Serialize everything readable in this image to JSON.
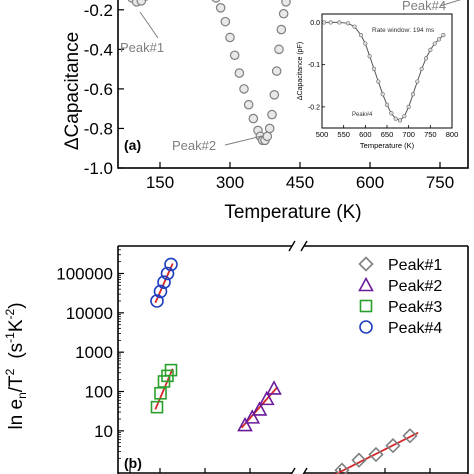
{
  "chart_data": [
    {
      "type": "scatter",
      "panel_label": "(a)",
      "xlabel": "Temperature (K)",
      "ylabel": "ΔCapacitance",
      "xlim": [
        60,
        810
      ],
      "ylim": [
        -1.0,
        -0.1
      ],
      "x_ticks": [
        150,
        300,
        450,
        600,
        750
      ],
      "x_tick_labels": [
        "150",
        "300",
        "450",
        "600",
        "750"
      ],
      "y_ticks": [
        -0.2,
        -0.4,
        -0.6,
        -0.8,
        -1.0
      ],
      "y_tick_labels": [
        "-0.2",
        "-0.4",
        "-0.6",
        "-0.8",
        "-1.0"
      ],
      "marker_color": "#7f7f7f",
      "series": [
        {
          "x": [
            80,
            90,
            100,
            110,
            120,
            150,
            180,
            210,
            240,
            255,
            270,
            280,
            290,
            300,
            310,
            320,
            330,
            340,
            350,
            360,
            365,
            370,
            375,
            380,
            385,
            390,
            395,
            400,
            405,
            410,
            415,
            420,
            430,
            440
          ],
          "y": [
            -0.12,
            -0.14,
            -0.16,
            -0.155,
            -0.13,
            -0.11,
            -0.1,
            -0.1,
            -0.1,
            -0.11,
            -0.14,
            -0.19,
            -0.26,
            -0.34,
            -0.43,
            -0.52,
            -0.6,
            -0.68,
            -0.75,
            -0.81,
            -0.84,
            -0.86,
            -0.86,
            -0.84,
            -0.8,
            -0.73,
            -0.63,
            -0.51,
            -0.4,
            -0.3,
            -0.22,
            -0.16,
            -0.12,
            -0.1
          ]
        }
      ],
      "annotations": [
        "Peak#1",
        "Peak#2",
        "Peak#4"
      ],
      "inset": {
        "type": "line",
        "xlabel": "Temperature (K)",
        "ylabel": "ΔCapacitance (pF)",
        "text": "Rate window: 194 ms",
        "annotation": "Peak#4",
        "xlim": [
          500,
          800
        ],
        "ylim": [
          -0.25,
          0.02
        ],
        "x_ticks": [
          500,
          550,
          600,
          650,
          700,
          750,
          800
        ],
        "x_tick_labels": [
          "500",
          "550",
          "600",
          "650",
          "700",
          "750",
          "800"
        ],
        "y_ticks": [
          0.0,
          -0.1,
          -0.2
        ],
        "y_tick_labels": [
          "0.0",
          "-0.1",
          "-0.2"
        ],
        "x": [
          505,
          520,
          540,
          560,
          575,
          590,
          600,
          610,
          620,
          630,
          640,
          650,
          660,
          670,
          680,
          690,
          700,
          710,
          720,
          730,
          740,
          750,
          760,
          770,
          780
        ],
        "y": [
          0.0,
          0.0,
          0.0,
          -0.002,
          -0.01,
          -0.03,
          -0.05,
          -0.08,
          -0.11,
          -0.14,
          -0.17,
          -0.195,
          -0.215,
          -0.228,
          -0.232,
          -0.222,
          -0.2,
          -0.17,
          -0.14,
          -0.11,
          -0.085,
          -0.065,
          -0.05,
          -0.04,
          -0.03
        ]
      }
    },
    {
      "type": "scatter",
      "panel_label": "(b)",
      "ylabel": "ln e_n/T^2  (s^-1 K^-2)",
      "ylabel_parts": [
        "ln e",
        "n",
        "/T",
        "2",
        "(s",
        "-1",
        "K",
        "-2",
        ")"
      ],
      "y_scale": "log",
      "ylim": [
        0.8,
        500000
      ],
      "y_ticks": [
        10,
        100,
        1000,
        10000,
        100000
      ],
      "y_tick_labels": [
        "10",
        "100",
        "1000",
        "10000",
        "100000"
      ],
      "x_axis_break": true,
      "legend_position": "top-right",
      "series": [
        {
          "name": "Peak#1",
          "marker": "diamond",
          "color": "#7f7f7f",
          "x": [
            0,
            1,
            2,
            3,
            4
          ],
          "y": [
            1.0,
            1.8,
            2.5,
            4.2,
            7.5
          ],
          "fit_line": {
            "color": "#d62728",
            "y_start": 0.75,
            "y_end": 9.0
          }
        },
        {
          "name": "Peak#2",
          "marker": "triangle",
          "color": "#6a1b9a",
          "x": [
            0,
            1,
            2,
            3,
            4
          ],
          "y": [
            14,
            22,
            35,
            65,
            120
          ],
          "fit_line": {
            "color": "#d62728",
            "y_start": 12,
            "y_end": 130
          }
        },
        {
          "name": "Peak#3",
          "marker": "square",
          "color": "#2ca02c",
          "x": [
            0,
            1,
            2,
            3,
            4
          ],
          "y": [
            40,
            90,
            180,
            250,
            350
          ],
          "fit_line": {
            "color": "#d62728",
            "y_start": 35,
            "y_end": 380
          }
        },
        {
          "name": "Peak#4",
          "marker": "circle",
          "color": "#1f3fbf",
          "x": [
            0,
            1,
            2,
            3,
            4
          ],
          "y": [
            20000,
            35000,
            60000,
            100000,
            170000
          ],
          "fit_line": {
            "color": "#d62728",
            "y_start": 18000,
            "y_end": 180000
          }
        }
      ]
    }
  ]
}
